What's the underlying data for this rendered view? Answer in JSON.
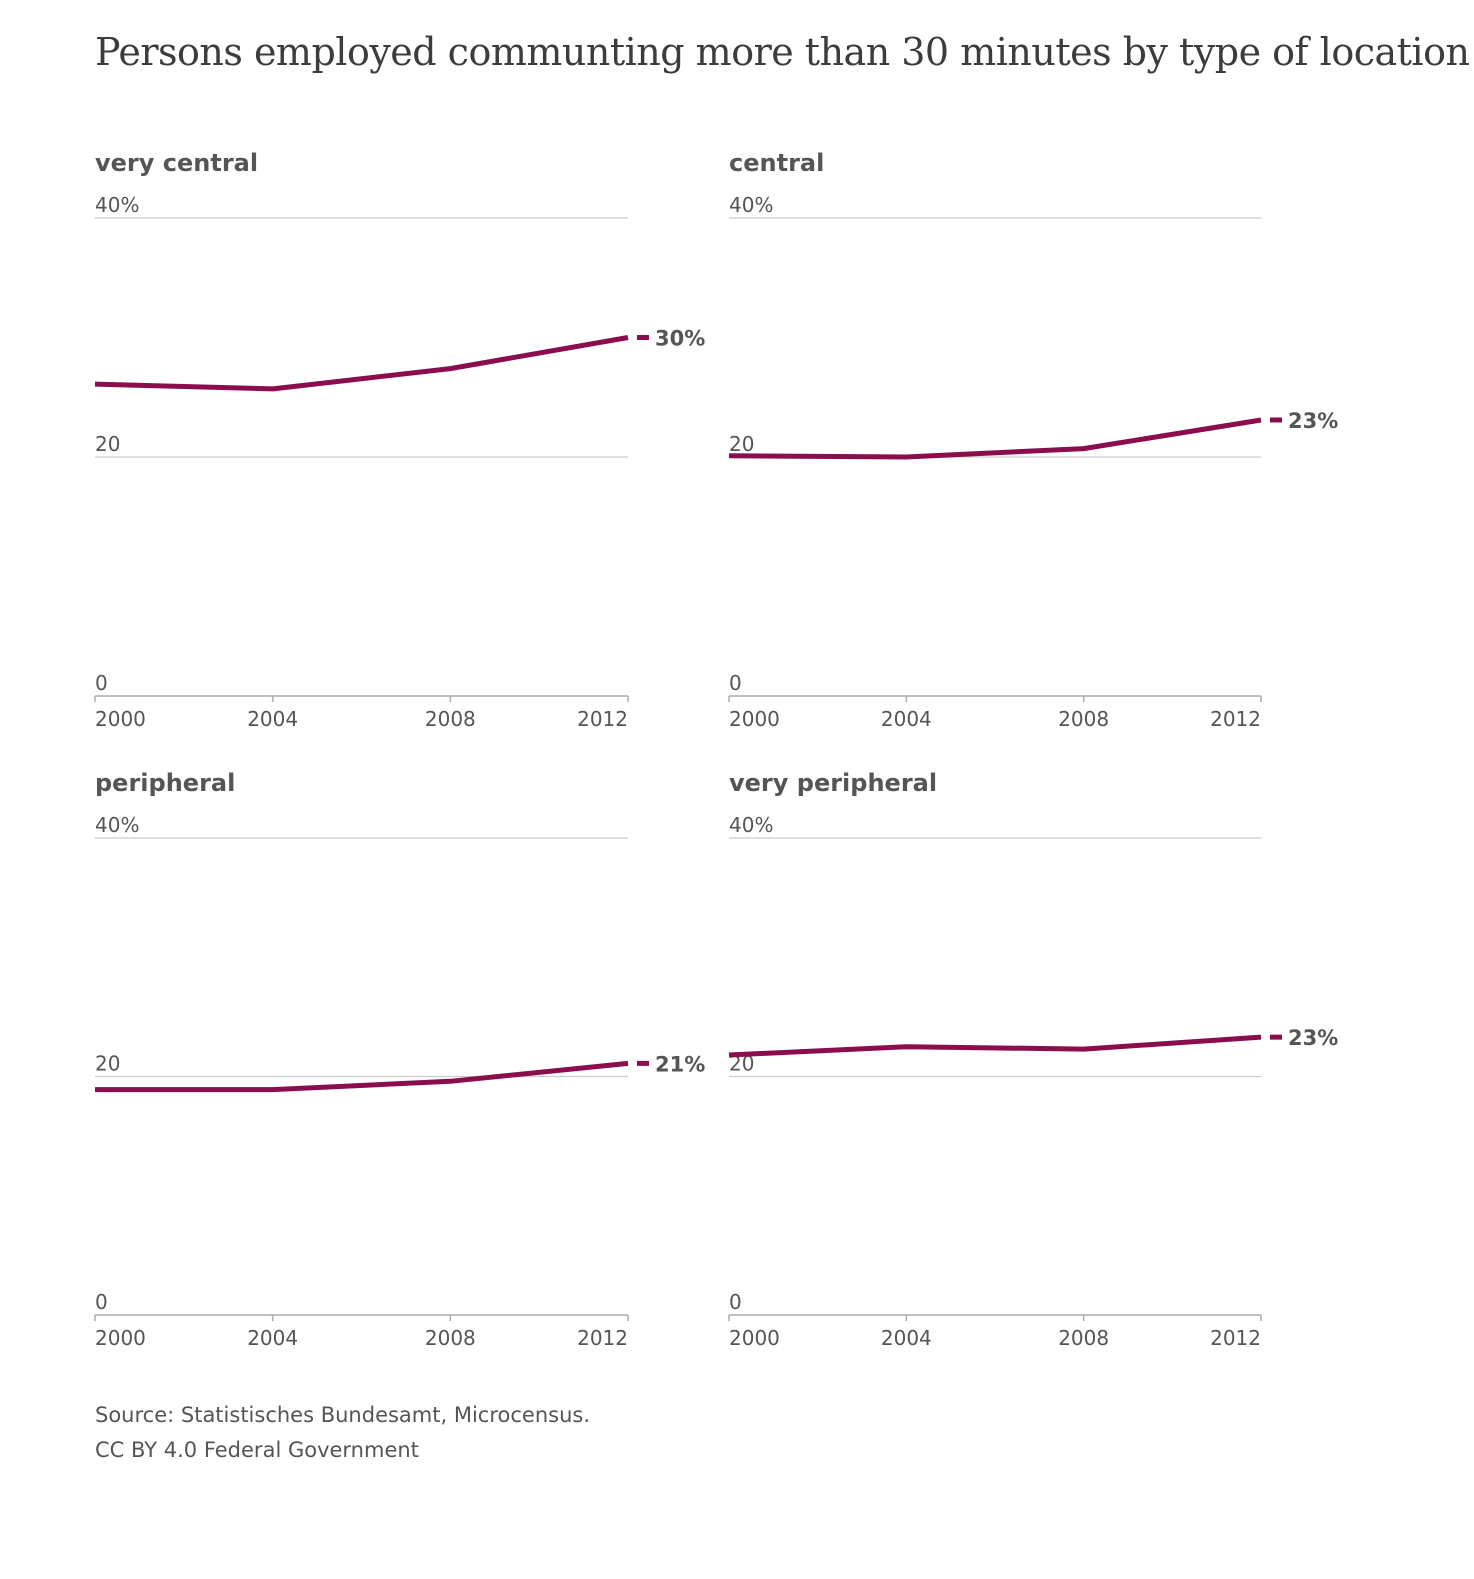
{
  "title": "Persons employed communting more than 30 minutes by type of location",
  "source_line1": "Source: Statistisches Bundesamt, Microcensus.",
  "source_line2": "CC BY 4.0 Federal Government",
  "line_color": "#8b0d4d",
  "grid_color": "#cccccc",
  "chart_data": [
    {
      "type": "line",
      "title": "very central",
      "x": [
        2000,
        2004,
        2008,
        2012
      ],
      "values": [
        26.1,
        25.7,
        27.4,
        30.0
      ],
      "end_label": "30%",
      "ylim": [
        0,
        40
      ],
      "yticks": [
        {
          "value": 40,
          "label": "40%"
        },
        {
          "value": 20,
          "label": "20"
        },
        {
          "value": 0,
          "label": "0"
        }
      ],
      "xticks": [
        "2000",
        "2004",
        "2008",
        "2012"
      ]
    },
    {
      "type": "line",
      "title": "central",
      "x": [
        2000,
        2004,
        2008,
        2012
      ],
      "values": [
        20.1,
        20.0,
        20.7,
        23.1
      ],
      "end_label": "23%",
      "ylim": [
        0,
        40
      ],
      "yticks": [
        {
          "value": 40,
          "label": "40%"
        },
        {
          "value": 20,
          "label": "20"
        },
        {
          "value": 0,
          "label": "0"
        }
      ],
      "xticks": [
        "2000",
        "2004",
        "2008",
        "2012"
      ]
    },
    {
      "type": "line",
      "title": "peripheral",
      "x": [
        2000,
        2004,
        2008,
        2012
      ],
      "values": [
        18.9,
        18.9,
        19.6,
        21.1
      ],
      "end_label": "21%",
      "ylim": [
        0,
        40
      ],
      "yticks": [
        {
          "value": 40,
          "label": "40%"
        },
        {
          "value": 20,
          "label": "20"
        },
        {
          "value": 0,
          "label": "0"
        }
      ],
      "xticks": [
        "2000",
        "2004",
        "2008",
        "2012"
      ]
    },
    {
      "type": "line",
      "title": "very peripheral",
      "x": [
        2000,
        2004,
        2008,
        2012
      ],
      "values": [
        21.8,
        22.5,
        22.3,
        23.3
      ],
      "end_label": "23%",
      "ylim": [
        0,
        40
      ],
      "yticks": [
        {
          "value": 40,
          "label": "40%"
        },
        {
          "value": 20,
          "label": "20"
        },
        {
          "value": 0,
          "label": "0"
        }
      ],
      "xticks": [
        "2000",
        "2004",
        "2008",
        "2012"
      ]
    }
  ]
}
